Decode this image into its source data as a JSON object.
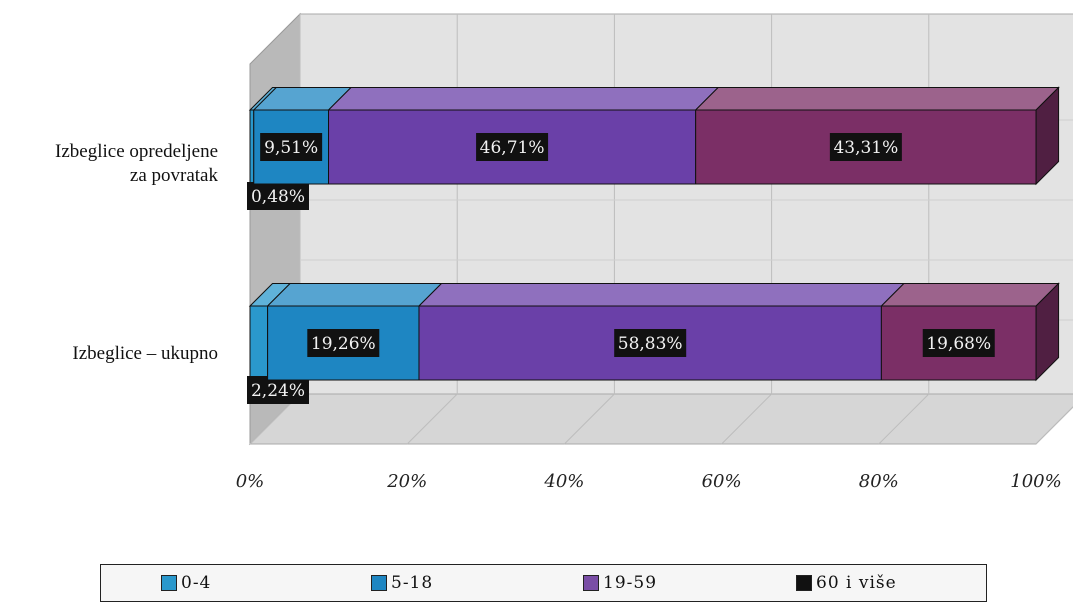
{
  "chart_data": {
    "type": "bar",
    "orientation": "horizontal",
    "stacked": true,
    "percent_stacked": true,
    "three_d": true,
    "title": "",
    "xlabel": "",
    "ylabel": "",
    "categories": [
      "Izbeglice opredeljene za povratak",
      "Izbeglice – ukupno"
    ],
    "category_label_lines": [
      [
        "Izbeglice opredeljene",
        "za povratak"
      ],
      [
        "Izbeglice – ukupno"
      ]
    ],
    "series": [
      {
        "name": "0-4",
        "values": [
          0.48,
          2.24
        ],
        "labels": [
          "0,48%",
          "2,24%"
        ],
        "color": "#2a98cc"
      },
      {
        "name": "5-18",
        "values": [
          9.51,
          19.26
        ],
        "labels": [
          "9,51%",
          "19,26%"
        ],
        "color": "#1e86c2"
      },
      {
        "name": "19-59",
        "values": [
          46.71,
          58.83
        ],
        "labels": [
          "46,71%",
          "58,83%"
        ],
        "color": "#6a40a8"
      },
      {
        "name": "60 i više",
        "values": [
          43.31,
          19.68
        ],
        "labels": [
          "43,31%",
          "19,68%"
        ],
        "color": "#7b2f66"
      }
    ],
    "legend_colors": [
      "#2a98cc",
      "#1e86c2",
      "#7a4ea6",
      "#111111"
    ],
    "xlim": [
      0,
      100
    ],
    "xticks": [
      "0%",
      "20%",
      "40%",
      "60%",
      "80%",
      "100%"
    ],
    "legend_position": "bottom",
    "grid": true
  }
}
